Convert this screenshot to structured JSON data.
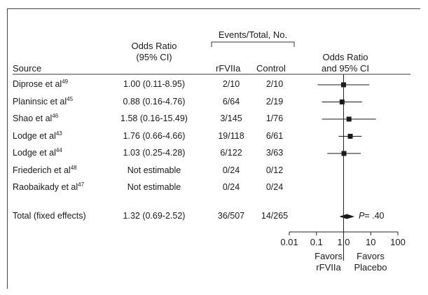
{
  "chart_data": {
    "type": "forest",
    "headers": {
      "source": "Source",
      "odds_ratio": "Odds Ratio\n(95% CI)",
      "events_group": "Events/Total, No.",
      "rfviia": "rFVIIa",
      "control": "Control",
      "plot": "Odds Ratio\nand 95% CI"
    },
    "rows": [
      {
        "author": "Diprose et al",
        "ref": "49",
        "or_text": "1.00 (0.11-8.95)",
        "rfviia": "2/10",
        "control": "2/10",
        "or": 1.0,
        "lo": 0.11,
        "hi": 8.95
      },
      {
        "author": "Planinsic et al",
        "ref": "45",
        "or_text": "0.88 (0.16-4.76)",
        "rfviia": "6/64",
        "control": "2/19",
        "or": 0.88,
        "lo": 0.16,
        "hi": 4.76
      },
      {
        "author": "Shao et al",
        "ref": "46",
        "or_text": "1.58 (0.16-15.49)",
        "rfviia": "3/145",
        "control": "1/76",
        "or": 1.58,
        "lo": 0.16,
        "hi": 15.49
      },
      {
        "author": "Lodge et al",
        "ref": "43",
        "or_text": "1.76 (0.66-4.66)",
        "rfviia": "19/118",
        "control": "6/61",
        "or": 1.76,
        "lo": 0.66,
        "hi": 4.66
      },
      {
        "author": "Lodge et al",
        "ref": "44",
        "or_text": "1.03 (0.25-4.28)",
        "rfviia": "6/122",
        "control": "3/63",
        "or": 1.03,
        "lo": 0.25,
        "hi": 4.28
      },
      {
        "author": "Friederich et al",
        "ref": "48",
        "or_text": "Not estimable",
        "rfviia": "0/24",
        "control": "0/12",
        "or": null,
        "lo": null,
        "hi": null
      },
      {
        "author": "Raobaikady et al",
        "ref": "47",
        "or_text": "Not estimable",
        "rfviia": "0/24",
        "control": "0/24",
        "or": null,
        "lo": null,
        "hi": null
      }
    ],
    "total": {
      "label": "Total (fixed effects)",
      "or_text": "1.32 (0.69-2.52)",
      "rfviia": "36/507",
      "control": "14/265",
      "or": 1.32,
      "lo": 0.69,
      "hi": 2.52,
      "p_label": "P",
      "p_value": "= .40"
    },
    "x_axis": {
      "scale": "log",
      "ticks": [
        0.01,
        0.1,
        1.0,
        10,
        100
      ],
      "tick_labels": [
        "0.01",
        "0.1",
        "1.0",
        "10",
        "100"
      ],
      "range": [
        0.01,
        100
      ]
    },
    "favors_left": "Favors\nrFVIIa",
    "favors_right": "Favors\nPlacebo",
    "marker_color": "#1a1a1a"
  }
}
